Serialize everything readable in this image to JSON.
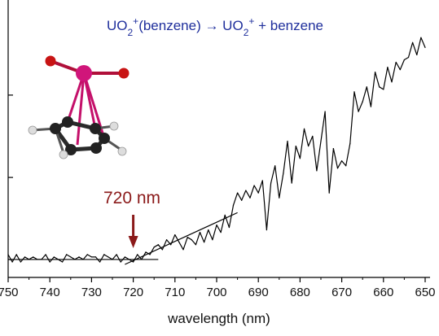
{
  "chart_data": {
    "type": "line",
    "title": "UO2+(benzene) → UO2+ + benzene",
    "title_parts": {
      "a": "UO",
      "a_sub": "2",
      "a_sup": "+",
      "b": "(benzene) → UO",
      "b_sub": "2",
      "b_sup": "+",
      "c": " + benzene"
    },
    "title_color": "#1f2f9c",
    "xlabel": "wavelength (nm)",
    "ylabel": "",
    "xlim": [
      750,
      650
    ],
    "x_reversed": true,
    "ylim": [
      0,
      1
    ],
    "x_ticks": [
      "750",
      "740",
      "730",
      "720",
      "710",
      "700",
      "690",
      "680",
      "670",
      "660",
      "650"
    ],
    "y_tick_values": [
      0.0,
      0.333,
      0.667
    ],
    "grid": false,
    "legend": "none",
    "line_color": "#000000",
    "annotation": {
      "text": "720 nm",
      "x": 720,
      "color": "#8b1a1a"
    },
    "series": [
      {
        "x": [
          750,
          749,
          748,
          747,
          746,
          745,
          744,
          743,
          742,
          741,
          740,
          739,
          738,
          737,
          736,
          735,
          734,
          733,
          732,
          731,
          730,
          729,
          728,
          727,
          726,
          725,
          724,
          723,
          722,
          721,
          720,
          719,
          718,
          717,
          716,
          715,
          714,
          713,
          712,
          711,
          710,
          709,
          708,
          707,
          706,
          705,
          704,
          703,
          702,
          701,
          700,
          699,
          698,
          697,
          696,
          695,
          694,
          693,
          692,
          691,
          690,
          689,
          688,
          687,
          686,
          685,
          684,
          683,
          682,
          681,
          680,
          679,
          678,
          677,
          676,
          675,
          674,
          673,
          672,
          671,
          670,
          669,
          668,
          667,
          666,
          665,
          664,
          663,
          662,
          661,
          660,
          659,
          658,
          657,
          656,
          655,
          654,
          653,
          652,
          651,
          650
        ],
        "values": [
          0.04,
          0.01,
          0.04,
          0.01,
          0.03,
          0.02,
          0.03,
          0.02,
          0.02,
          0.04,
          0.01,
          0.03,
          0.02,
          0.01,
          0.04,
          0.03,
          0.02,
          0.03,
          0.02,
          0.04,
          0.03,
          0.03,
          0.01,
          0.04,
          0.03,
          0.02,
          0.04,
          0.01,
          0.03,
          0.02,
          0.01,
          0.04,
          0.02,
          0.05,
          0.04,
          0.07,
          0.08,
          0.06,
          0.1,
          0.08,
          0.12,
          0.09,
          0.06,
          0.11,
          0.1,
          0.08,
          0.13,
          0.09,
          0.14,
          0.1,
          0.16,
          0.13,
          0.2,
          0.15,
          0.24,
          0.29,
          0.26,
          0.3,
          0.27,
          0.32,
          0.29,
          0.34,
          0.14,
          0.33,
          0.4,
          0.27,
          0.37,
          0.5,
          0.33,
          0.48,
          0.43,
          0.55,
          0.48,
          0.52,
          0.38,
          0.5,
          0.62,
          0.29,
          0.47,
          0.39,
          0.42,
          0.4,
          0.49,
          0.7,
          0.62,
          0.66,
          0.72,
          0.64,
          0.78,
          0.72,
          0.71,
          0.8,
          0.74,
          0.82,
          0.79,
          0.83,
          0.84,
          0.9,
          0.85,
          0.92,
          0.88
        ]
      }
    ],
    "fit_lines": [
      {
        "x": [
          750,
          714
        ],
        "values": [
          0.02,
          0.02
        ]
      },
      {
        "x": [
          722,
          695
        ],
        "values": [
          0.0,
          0.21
        ]
      }
    ]
  }
}
